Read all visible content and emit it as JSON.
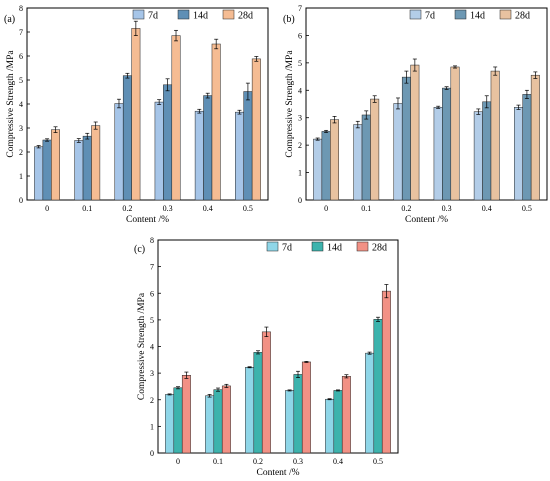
{
  "chart_data": [
    {
      "type": "bar",
      "panel_label": "(a)",
      "categories": [
        "0",
        "0.1",
        "0.2",
        "0.3",
        "0.4",
        "0.5"
      ],
      "series": [
        {
          "name": "7d",
          "values": [
            2.22,
            2.48,
            4.02,
            4.08,
            3.7,
            3.66
          ],
          "errors": [
            0.05,
            0.08,
            0.18,
            0.1,
            0.08,
            0.08
          ]
        },
        {
          "name": "14d",
          "values": [
            2.5,
            2.66,
            5.18,
            4.8,
            4.35,
            4.52
          ],
          "errors": [
            0.05,
            0.12,
            0.1,
            0.25,
            0.1,
            0.35
          ]
        },
        {
          "name": "28d",
          "values": [
            2.93,
            3.1,
            7.15,
            6.85,
            6.5,
            5.88
          ],
          "errors": [
            0.12,
            0.15,
            0.3,
            0.22,
            0.2,
            0.1
          ]
        }
      ],
      "xlabel": "Content /%",
      "ylabel": "Compressive Strength /MPa",
      "ylim": [
        0,
        8
      ],
      "yticks": [
        "0",
        "1",
        "2",
        "3",
        "4",
        "5",
        "6",
        "7",
        "8"
      ],
      "legend_position": "top-right",
      "colors": [
        "#a6c5e8",
        "#5f8fb5",
        "#f5bc93"
      ]
    },
    {
      "type": "bar",
      "panel_label": "(b)",
      "categories": [
        "0",
        "0.1",
        "0.2",
        "0.3",
        "0.4",
        "0.5"
      ],
      "series": [
        {
          "name": "7d",
          "values": [
            2.22,
            2.75,
            3.52,
            3.38,
            3.22,
            3.38
          ],
          "errors": [
            0.04,
            0.12,
            0.2,
            0.04,
            0.1,
            0.08
          ]
        },
        {
          "name": "14d",
          "values": [
            2.5,
            3.1,
            4.48,
            4.08,
            3.58,
            3.85
          ],
          "errors": [
            0.04,
            0.15,
            0.22,
            0.05,
            0.22,
            0.15
          ]
        },
        {
          "name": "28d",
          "values": [
            2.93,
            3.68,
            4.92,
            4.85,
            4.7,
            4.55
          ],
          "errors": [
            0.12,
            0.12,
            0.22,
            0.04,
            0.15,
            0.12
          ]
        }
      ],
      "xlabel": "Content /%",
      "ylabel": "Compressive Strength /MPa",
      "ylim": [
        0,
        7
      ],
      "yticks": [
        "0",
        "1",
        "2",
        "3",
        "4",
        "5",
        "6",
        "7"
      ],
      "legend_position": "top-right",
      "colors": [
        "#b3cde8",
        "#6d98b3",
        "#e8c2a0"
      ]
    },
    {
      "type": "bar",
      "panel_label": "(c)",
      "categories": [
        "0",
        "0.1",
        "0.2",
        "0.3",
        "0.4",
        "0.5"
      ],
      "series": [
        {
          "name": "7d",
          "values": [
            2.2,
            2.15,
            3.22,
            2.35,
            2.02,
            3.75
          ],
          "errors": [
            0.02,
            0.05,
            0.02,
            0.02,
            0.02,
            0.04
          ]
        },
        {
          "name": "14d",
          "values": [
            2.45,
            2.38,
            3.78,
            2.95,
            2.35,
            5.02
          ],
          "errors": [
            0.04,
            0.06,
            0.06,
            0.12,
            0.02,
            0.08
          ]
        },
        {
          "name": "28d",
          "values": [
            2.92,
            2.52,
            4.55,
            3.42,
            2.88,
            6.08
          ],
          "errors": [
            0.12,
            0.06,
            0.18,
            0.02,
            0.06,
            0.25
          ]
        }
      ],
      "xlabel": "Content /%",
      "ylabel": "Compressive Strength /MPa",
      "ylim": [
        0,
        8
      ],
      "yticks": [
        "0",
        "1",
        "2",
        "3",
        "4",
        "5",
        "6",
        "7",
        "8"
      ],
      "legend_position": "top-right",
      "colors": [
        "#8fd6e8",
        "#3db3ad",
        "#f29185"
      ]
    }
  ]
}
